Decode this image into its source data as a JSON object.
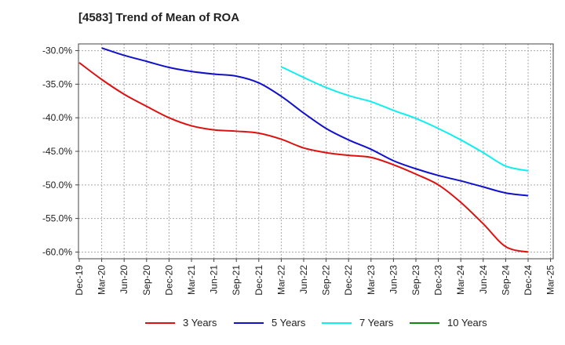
{
  "chart_data": {
    "type": "line",
    "title": "[4583]  Trend of Mean of ROA",
    "xlabel": "",
    "ylabel": "",
    "ylim": [
      -61,
      -29
    ],
    "yticks": [
      -30,
      -35,
      -40,
      -45,
      -50,
      -55,
      -60
    ],
    "ytick_labels": [
      "-30.0%",
      "-35.0%",
      "-40.0%",
      "-45.0%",
      "-50.0%",
      "-55.0%",
      "-60.0%"
    ],
    "x_tick_labels": [
      "Dec-19",
      "Mar-20",
      "Jun-20",
      "Sep-20",
      "Dec-20",
      "Mar-21",
      "Jun-21",
      "Sep-21",
      "Dec-21",
      "Mar-22",
      "Jun-22",
      "Sep-22",
      "Dec-22",
      "Mar-23",
      "Jun-23",
      "Sep-23",
      "Dec-23",
      "Mar-24",
      "Jun-24",
      "Sep-24",
      "Dec-24",
      "Mar-25"
    ],
    "grid": true,
    "legend_position": "bottom",
    "series": [
      {
        "name": "3 Years",
        "color": "#dd1111",
        "start_index": 0,
        "values": [
          -31.8,
          -34.3,
          -36.5,
          -38.3,
          -40.0,
          -41.2,
          -41.8,
          -42.0,
          -42.3,
          -43.2,
          -44.5,
          -45.2,
          -45.6,
          -45.9,
          -47.0,
          -48.4,
          -50.0,
          -52.6,
          -55.8,
          -59.2,
          -60.0
        ]
      },
      {
        "name": "5 Years",
        "color": "#1111cc",
        "start_index": 1,
        "values": [
          -29.6,
          -30.7,
          -31.6,
          -32.5,
          -33.1,
          -33.5,
          -33.8,
          -34.8,
          -36.8,
          -39.3,
          -41.6,
          -43.3,
          -44.7,
          -46.4,
          -47.6,
          -48.6,
          -49.4,
          -50.3,
          -51.2,
          -51.6
        ]
      },
      {
        "name": "7 Years",
        "color": "#11eeee",
        "start_index": 9,
        "values": [
          -32.4,
          -34.0,
          -35.5,
          -36.7,
          -37.6,
          -38.9,
          -40.1,
          -41.6,
          -43.3,
          -45.2,
          -47.2,
          -47.9
        ]
      },
      {
        "name": "10 Years",
        "color": "#118811",
        "start_index": 0,
        "values": []
      }
    ]
  }
}
